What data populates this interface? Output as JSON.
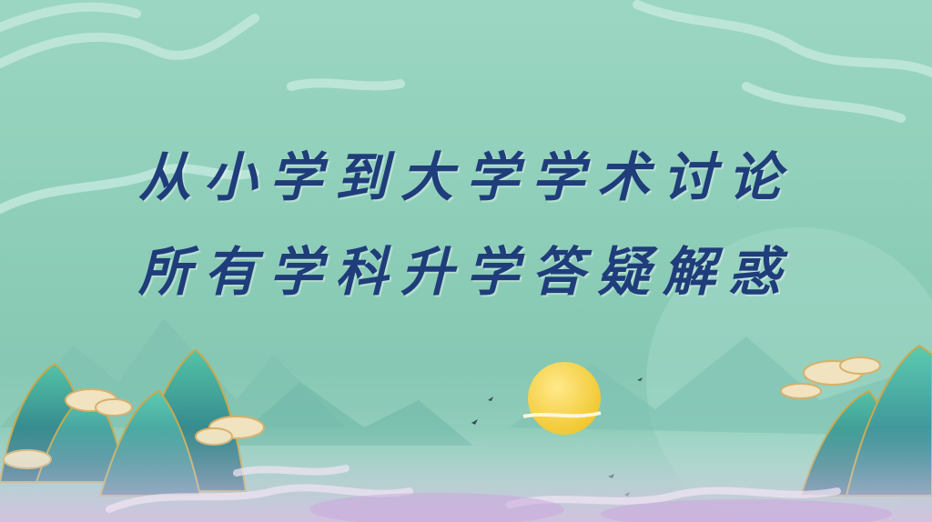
{
  "title": {
    "line1": "从小学到大学学术讨论",
    "line2": "所有学科升学答疑解惑"
  },
  "colors": {
    "background": "#8fcfb9",
    "title_text": "#1f3d7a",
    "sun": "#f3d43a",
    "mountain_dark": "#2e7f8e",
    "mountain_light": "#3aa39a",
    "cloud_gold": "#f1e3bf",
    "mist_pink": "#d6b7e0"
  },
  "decorations": [
    "cloud-swirl-icon",
    "mountain-icon",
    "sun-icon",
    "bird-icon",
    "moon-circle-icon"
  ]
}
